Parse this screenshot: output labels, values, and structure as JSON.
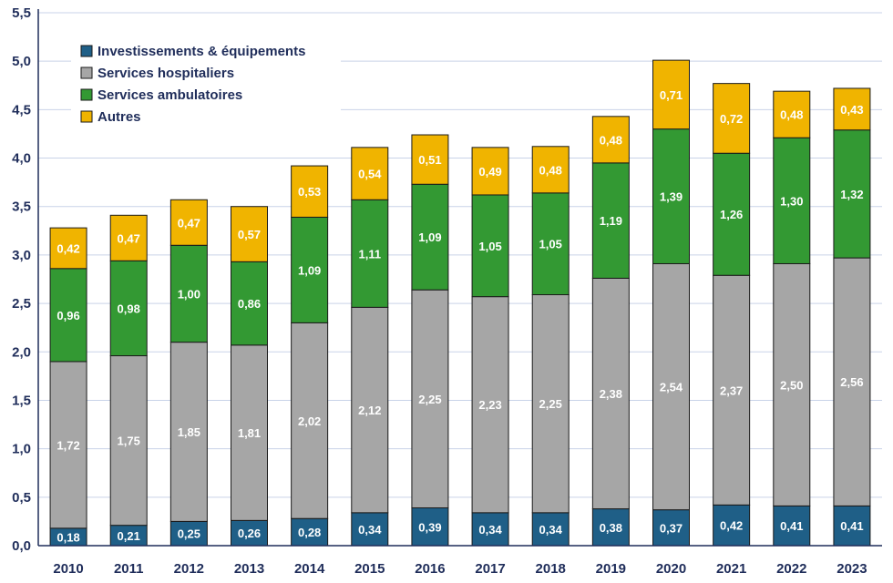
{
  "chart_data": {
    "type": "bar",
    "stacked": true,
    "title": "",
    "xlabel": "",
    "ylabel": "",
    "ylim": [
      0,
      5.5
    ],
    "yticks": [
      "0,0",
      "0,5",
      "1,0",
      "1,5",
      "2,0",
      "2,5",
      "3,0",
      "3,5",
      "4,0",
      "4,5",
      "5,0",
      "5,5"
    ],
    "grid": true,
    "legend_position": "top-left",
    "categories": [
      "2010",
      "2011",
      "2012",
      "2013",
      "2014",
      "2015",
      "2016",
      "2017",
      "2018",
      "2019",
      "2020",
      "2021",
      "2022",
      "2023"
    ],
    "series": [
      {
        "name": "Investissements & équipements",
        "color": "#1f5f87",
        "values": [
          0.18,
          0.21,
          0.25,
          0.26,
          0.28,
          0.34,
          0.39,
          0.34,
          0.34,
          0.38,
          0.37,
          0.42,
          0.41,
          0.41
        ],
        "labels": [
          "0,18",
          "0,21",
          "0,25",
          "0,26",
          "0,28",
          "0,34",
          "0,39",
          "0,34",
          "0,34",
          "0,38",
          "0,37",
          "0,42",
          "0,41",
          "0,41"
        ]
      },
      {
        "name": "Services hospitaliers",
        "color": "#a6a6a6",
        "values": [
          1.72,
          1.75,
          1.85,
          1.81,
          2.02,
          2.12,
          2.25,
          2.23,
          2.25,
          2.38,
          2.54,
          2.37,
          2.5,
          2.56
        ],
        "labels": [
          "1,72",
          "1,75",
          "1,85",
          "1,81",
          "2,02",
          "2,12",
          "2,25",
          "2,23",
          "2,25",
          "2,38",
          "2,54",
          "2,37",
          "2,50",
          "2,56"
        ]
      },
      {
        "name": "Services ambulatoires",
        "color": "#339933",
        "values": [
          0.96,
          0.98,
          1.0,
          0.86,
          1.09,
          1.11,
          1.09,
          1.05,
          1.05,
          1.19,
          1.39,
          1.26,
          1.3,
          1.32
        ],
        "labels": [
          "0,96",
          "0,98",
          "1,00",
          "0,86",
          "1,09",
          "1,11",
          "1,09",
          "1,05",
          "1,05",
          "1,19",
          "1,39",
          "1,26",
          "1,30",
          "1,32"
        ]
      },
      {
        "name": "Autres",
        "color": "#f0b400",
        "values": [
          0.42,
          0.47,
          0.47,
          0.57,
          0.53,
          0.54,
          0.51,
          0.49,
          0.48,
          0.48,
          0.71,
          0.72,
          0.48,
          0.43
        ],
        "labels": [
          "0,42",
          "0,47",
          "0,47",
          "0,57",
          "0,53",
          "0,54",
          "0,51",
          "0,49",
          "0,48",
          "0,48",
          "0,71",
          "0,72",
          "0,48",
          "0,43"
        ]
      }
    ]
  }
}
